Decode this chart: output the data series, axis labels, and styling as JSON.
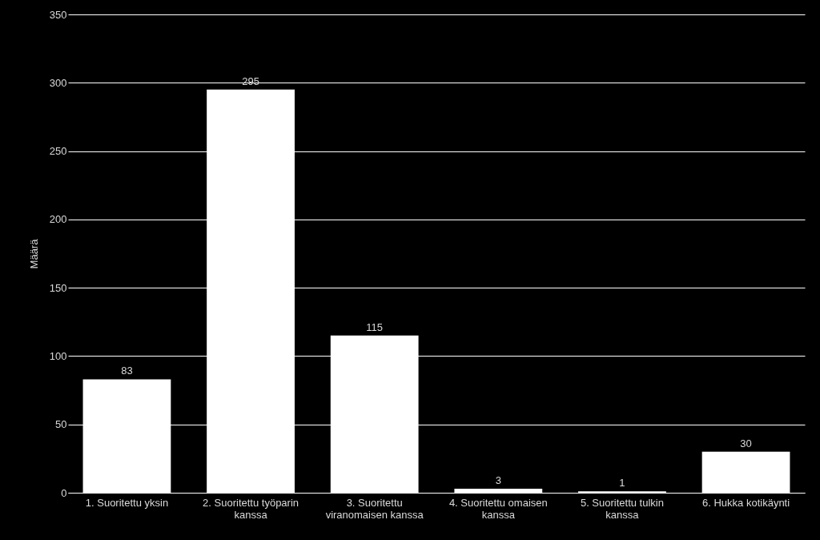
{
  "chart_data": {
    "type": "bar",
    "ylabel": "Määrä",
    "categories": [
      "1. Suoritettu yksin",
      "2. Suoritettu työparin kanssa",
      "3. Suoritettu viranomaisen kanssa",
      "4. Suoritettu omaisen kanssa",
      "5. Suoritettu tulkin kanssa",
      "6. Hukka kotikäynti"
    ],
    "values": [
      83,
      295,
      115,
      3,
      1,
      30
    ],
    "color": "#ffffff",
    "ylim": [
      0,
      350
    ],
    "yticks": [
      0,
      50,
      100,
      150,
      200,
      250,
      300,
      350
    ],
    "grid": "y",
    "data_labels": true
  }
}
